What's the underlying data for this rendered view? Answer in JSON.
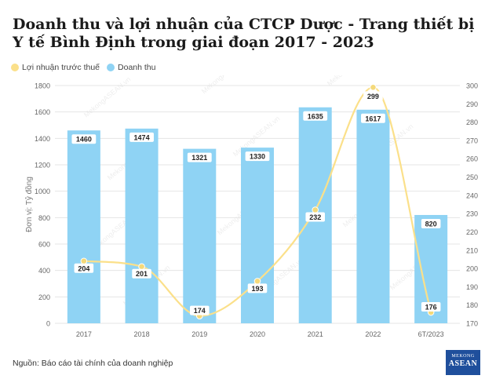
{
  "title": "Doanh thu và lợi nhuận của CTCP Dược - Trang thiết bị Y tế Bình Định trong giai đoạn 2017 - 2023",
  "legend": {
    "profit": "Lợi nhuận trước thuế",
    "revenue": "Doanh thu"
  },
  "source": "Nguồn: Báo cáo tài chính của doanh nghiệp",
  "logo": {
    "line1": "MEKONG",
    "line2": "ASEAN"
  },
  "watermark": "MekongASEAN.vn",
  "colors": {
    "revenue": "#8fd3f4",
    "profit": "#fbe08a",
    "profit_marker": "#f4d97a",
    "grid": "#e4e4e4",
    "axis_text": "#666666"
  },
  "chart_data": {
    "type": "bar",
    "categories": [
      "2017",
      "2018",
      "2019",
      "2020",
      "2021",
      "2022",
      "6T/2023"
    ],
    "series": [
      {
        "name": "Doanh thu",
        "type": "bar",
        "axis": "left",
        "values": [
          1460,
          1474,
          1321,
          1330,
          1635,
          1617,
          820
        ]
      },
      {
        "name": "Lợi nhuận trước thuế",
        "type": "line",
        "axis": "right",
        "smooth": true,
        "values": [
          204,
          201,
          174,
          193,
          232,
          299,
          176
        ]
      }
    ],
    "ylabel": "Đơn vị: Tỷ đồng",
    "ylim": [
      0,
      1800
    ],
    "y_ticks": [
      0,
      200,
      400,
      600,
      800,
      1000,
      1200,
      1400,
      1600,
      1800
    ],
    "y2lim": [
      170,
      300
    ],
    "y2_ticks": [
      170,
      180,
      190,
      200,
      210,
      220,
      230,
      240,
      250,
      260,
      270,
      280,
      290,
      300
    ],
    "grid": true,
    "legend_position": "top-left"
  }
}
